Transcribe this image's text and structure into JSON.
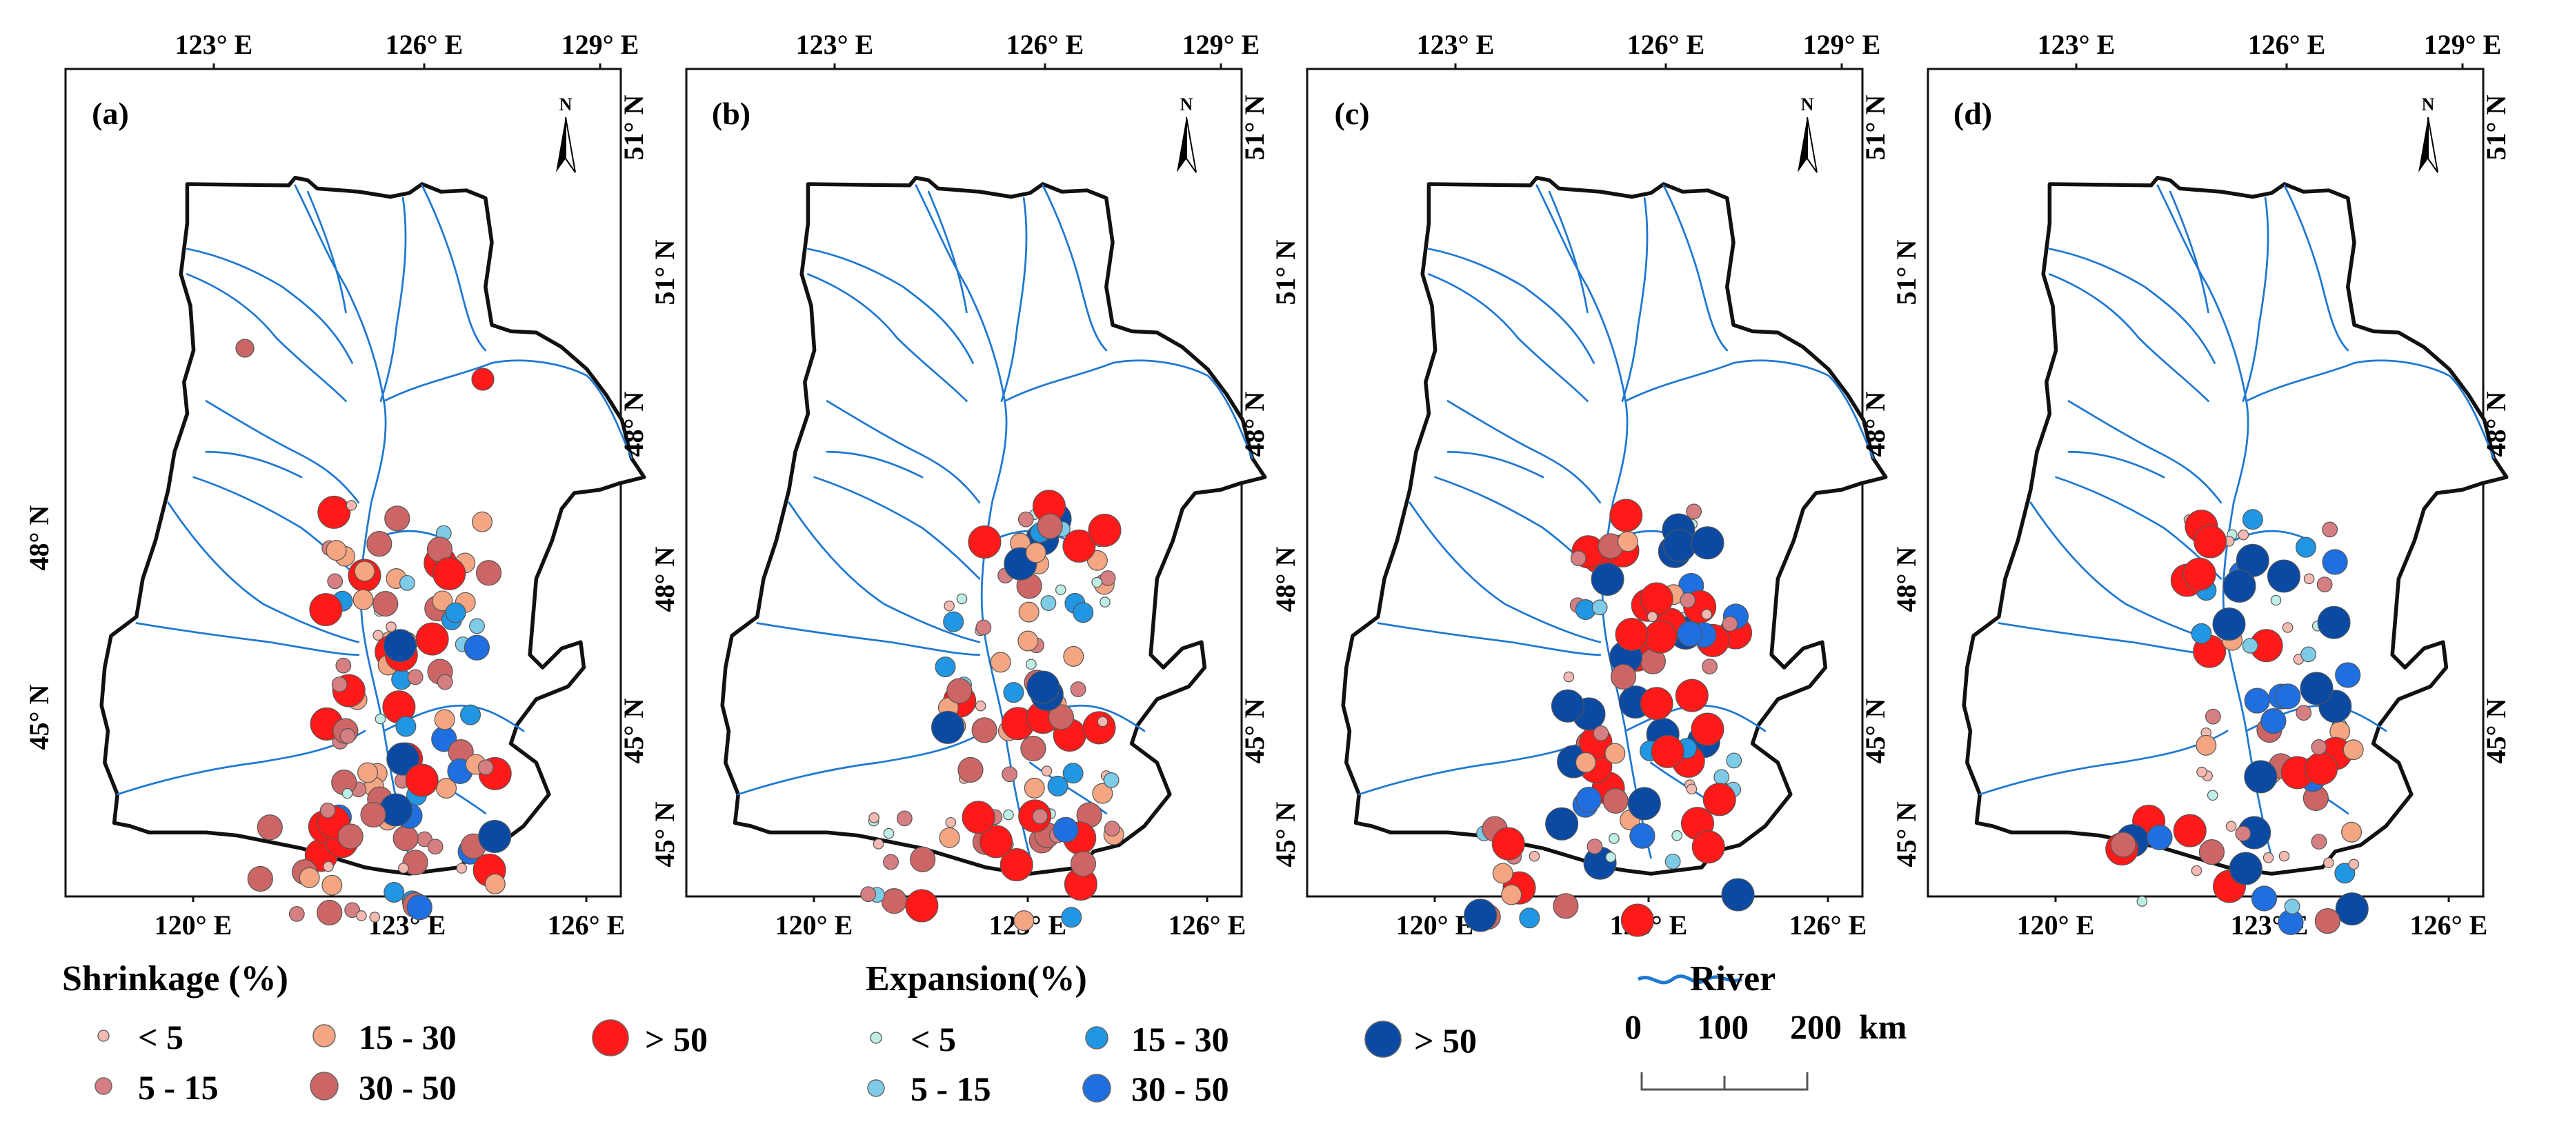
{
  "panels": [
    {
      "label": "(a)"
    },
    {
      "label": "(b)"
    },
    {
      "label": "(c)"
    },
    {
      "label": "(d)"
    }
  ],
  "axes": {
    "top_ticks": [
      "123° E",
      "126° E",
      "129° E"
    ],
    "bottom_ticks": [
      "120° E",
      "123° E",
      "126° E"
    ],
    "left_ticks": [
      "48° N",
      "45° N"
    ],
    "right_ticks": [
      "51° N",
      "51° N",
      "48° N",
      "48° N",
      "45° N",
      "45° N"
    ]
  },
  "north_arrow": "N",
  "legend": {
    "shrinkage": {
      "title": "Shrinkage (%)",
      "classes": [
        "< 5",
        "5 - 15",
        "15 - 30",
        "30 - 50",
        "> 50"
      ],
      "colors": [
        "#f4b9b0",
        "#d67f82",
        "#f4a582",
        "#cc6666",
        "#ff1a1a"
      ]
    },
    "expansion": {
      "title": "Expansion(%)",
      "classes": [
        "< 5",
        "5 - 15",
        "15 - 30",
        "30 - 50",
        "> 50"
      ],
      "colors": [
        "#bfeee6",
        "#7ecbe8",
        "#2196e3",
        "#1f6fe0",
        "#0b4aa2"
      ]
    },
    "river": {
      "label": "River",
      "color": "#1f78d1"
    },
    "scale": {
      "ticks": [
        "0",
        "100",
        "200"
      ],
      "unit": "km"
    }
  }
}
